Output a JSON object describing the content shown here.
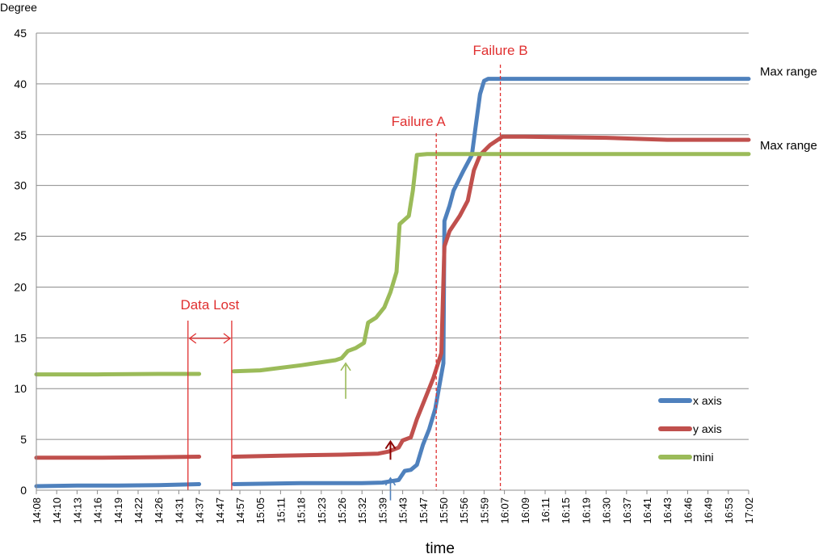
{
  "chart_data": {
    "type": "line",
    "title": "",
    "xlabel": "time",
    "ylabel": "Degree",
    "ylim": [
      0,
      45
    ],
    "yticks": [
      0,
      5,
      10,
      15,
      20,
      25,
      30,
      35,
      40,
      45
    ],
    "grid": true,
    "legend_position": "bottom-right",
    "categories": [
      "14:08",
      "14:10",
      "14:13",
      "14:16",
      "14:19",
      "14:22",
      "14:26",
      "14:31",
      "14:37",
      "14:47",
      "14:57",
      "15:05",
      "15:11",
      "15:18",
      "15:23",
      "15:26",
      "15:32",
      "15:39",
      "15:43",
      "15:47",
      "15:50",
      "15:56",
      "15:59",
      "16:07",
      "16:09",
      "16:11",
      "16:15",
      "16:19",
      "16:30",
      "16:37",
      "16:41",
      "16:43",
      "16:46",
      "16:49",
      "16:53",
      "17:02"
    ],
    "series": [
      {
        "name": "x axis",
        "color": "#4f81bd",
        "points": [
          [
            0,
            0.4
          ],
          [
            2,
            0.45
          ],
          [
            4,
            0.45
          ],
          [
            6,
            0.5
          ],
          [
            7,
            0.55
          ],
          [
            8,
            0.6
          ],
          [
            8.1,
            null
          ],
          [
            9.6,
            null
          ],
          [
            9.7,
            0.6
          ],
          [
            13,
            0.7
          ],
          [
            16,
            0.7
          ],
          [
            17,
            0.75
          ],
          [
            17.8,
            1.0
          ],
          [
            18.1,
            1.9
          ],
          [
            18.4,
            2.0
          ],
          [
            18.7,
            2.5
          ],
          [
            19,
            4.5
          ],
          [
            19.3,
            6.0
          ],
          [
            19.6,
            8.0
          ],
          [
            20,
            12.5
          ],
          [
            20.05,
            26.5
          ],
          [
            20.3,
            28.0
          ],
          [
            20.5,
            29.5
          ],
          [
            21,
            31.5
          ],
          [
            21.4,
            33.0
          ],
          [
            21.6,
            36.0
          ],
          [
            21.8,
            39.0
          ],
          [
            22,
            40.3
          ],
          [
            22.2,
            40.5
          ],
          [
            24,
            40.5
          ],
          [
            28,
            40.5
          ],
          [
            32,
            40.5
          ],
          [
            35,
            40.5
          ]
        ]
      },
      {
        "name": "y axis",
        "color": "#c0504d",
        "points": [
          [
            0,
            3.2
          ],
          [
            3,
            3.2
          ],
          [
            6,
            3.25
          ],
          [
            8,
            3.3
          ],
          [
            8.1,
            null
          ],
          [
            9.6,
            null
          ],
          [
            9.7,
            3.3
          ],
          [
            12,
            3.4
          ],
          [
            15,
            3.5
          ],
          [
            16.8,
            3.6
          ],
          [
            17.3,
            3.8
          ],
          [
            17.8,
            4.2
          ],
          [
            18,
            4.9
          ],
          [
            18.4,
            5.2
          ],
          [
            18.7,
            7.0
          ],
          [
            19.1,
            9.0
          ],
          [
            19.5,
            11.0
          ],
          [
            19.9,
            13.5
          ],
          [
            20.05,
            24.0
          ],
          [
            20.3,
            25.5
          ],
          [
            20.8,
            27.0
          ],
          [
            21.2,
            28.5
          ],
          [
            21.5,
            31.5
          ],
          [
            21.8,
            33.0
          ],
          [
            22.3,
            34.0
          ],
          [
            22.9,
            34.8
          ],
          [
            24,
            34.8
          ],
          [
            28,
            34.7
          ],
          [
            31,
            34.5
          ],
          [
            35,
            34.5
          ]
        ]
      },
      {
        "name": "mini",
        "color": "#9bbb59",
        "points": [
          [
            0,
            11.4
          ],
          [
            3,
            11.4
          ],
          [
            6,
            11.45
          ],
          [
            8,
            11.45
          ],
          [
            8.1,
            null
          ],
          [
            9.6,
            null
          ],
          [
            9.7,
            11.7
          ],
          [
            11,
            11.8
          ],
          [
            13,
            12.3
          ],
          [
            14.7,
            12.8
          ],
          [
            15,
            13.0
          ],
          [
            15.3,
            13.7
          ],
          [
            15.7,
            14.0
          ],
          [
            16.1,
            14.5
          ],
          [
            16.3,
            16.5
          ],
          [
            16.7,
            17.0
          ],
          [
            17.1,
            18.0
          ],
          [
            17.4,
            19.5
          ],
          [
            17.7,
            21.5
          ],
          [
            17.85,
            26.2
          ],
          [
            18.3,
            27.0
          ],
          [
            18.5,
            29.5
          ],
          [
            18.7,
            33.0
          ],
          [
            19.2,
            33.1
          ],
          [
            24,
            33.1
          ],
          [
            30,
            33.1
          ],
          [
            35,
            33.1
          ]
        ]
      }
    ],
    "annotations": {
      "data_lost": {
        "label": "Data Lost",
        "x_start": 7.45,
        "x_end": 9.6,
        "color": "#e03030"
      },
      "failure_a": {
        "label": "Failure A",
        "x": 19.65,
        "color": "#e03030"
      },
      "failure_b": {
        "label": "Failure B",
        "x": 22.8,
        "color": "#e03030"
      },
      "max_range_x": {
        "label": "Max range",
        "y": 40.5
      },
      "max_range_y": {
        "label": "Max range",
        "y": 34.5
      },
      "arrow_green": {
        "x": 15.2,
        "y_from": 9.0,
        "y_to": 12.5,
        "color": "#9bbb59"
      },
      "arrow_red": {
        "x": 17.4,
        "y_from": 3.0,
        "y_to": 4.8,
        "color": "#8b0000"
      },
      "arrow_blue": {
        "x": 17.4,
        "y_from": -1.0,
        "y_to": 1.2,
        "color": "#4f81bd"
      }
    }
  }
}
